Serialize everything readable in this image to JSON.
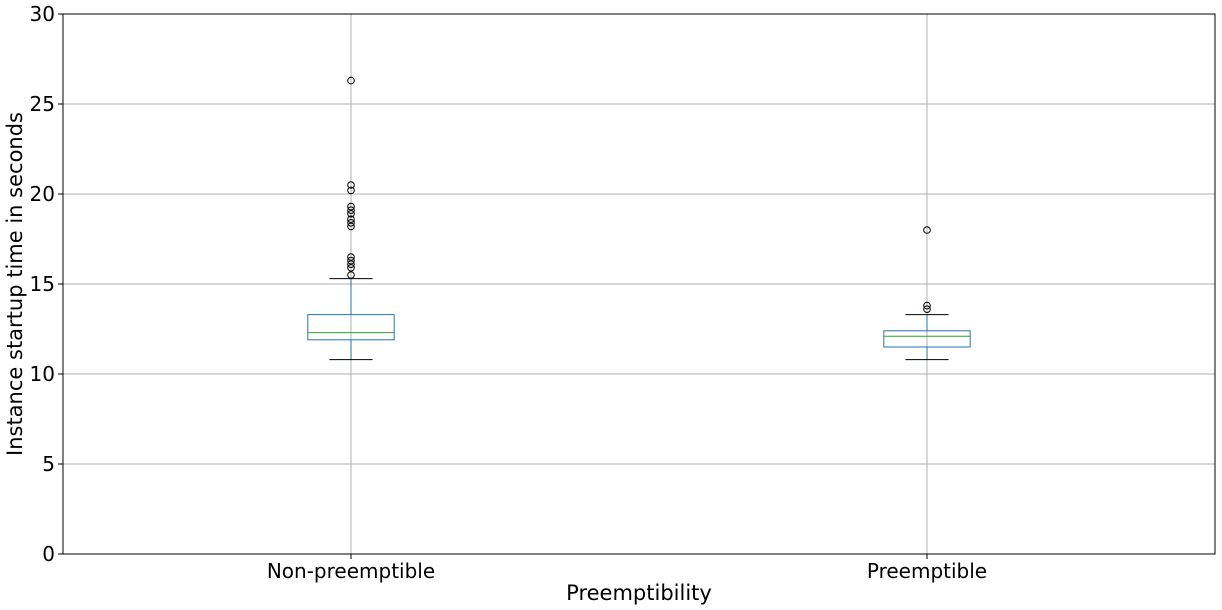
{
  "chart_data": {
    "type": "box",
    "title": "",
    "xlabel": "Preemptibility",
    "ylabel": "Instance startup time in seconds",
    "ylim": [
      0,
      30
    ],
    "yticks": [
      0,
      5,
      10,
      15,
      20,
      25,
      30
    ],
    "ytick_labels": [
      "0",
      "5",
      "10",
      "15",
      "20",
      "25",
      "30"
    ],
    "grid": true,
    "categories": [
      "Non-preemptible",
      "Preemptible"
    ],
    "boxes": [
      {
        "name": "Non-preemptible",
        "whisker_low": 10.8,
        "q1": 11.9,
        "median": 12.3,
        "q3": 13.3,
        "whisker_high": 15.3,
        "outliers": [
          15.5,
          15.9,
          16.1,
          16.3,
          16.5,
          18.2,
          18.4,
          18.6,
          18.9,
          19.1,
          19.3,
          20.2,
          20.5,
          26.3
        ]
      },
      {
        "name": "Preemptible",
        "whisker_low": 10.8,
        "q1": 11.5,
        "median": 12.1,
        "q3": 12.4,
        "whisker_high": 13.3,
        "outliers": [
          13.6,
          13.8,
          18.0
        ]
      }
    ],
    "colors": {
      "box": "#1f77b4",
      "median": "#2ca02c",
      "whisker_cap": "#000000",
      "grid": "#b0b0b0",
      "axes": "#000000"
    }
  }
}
